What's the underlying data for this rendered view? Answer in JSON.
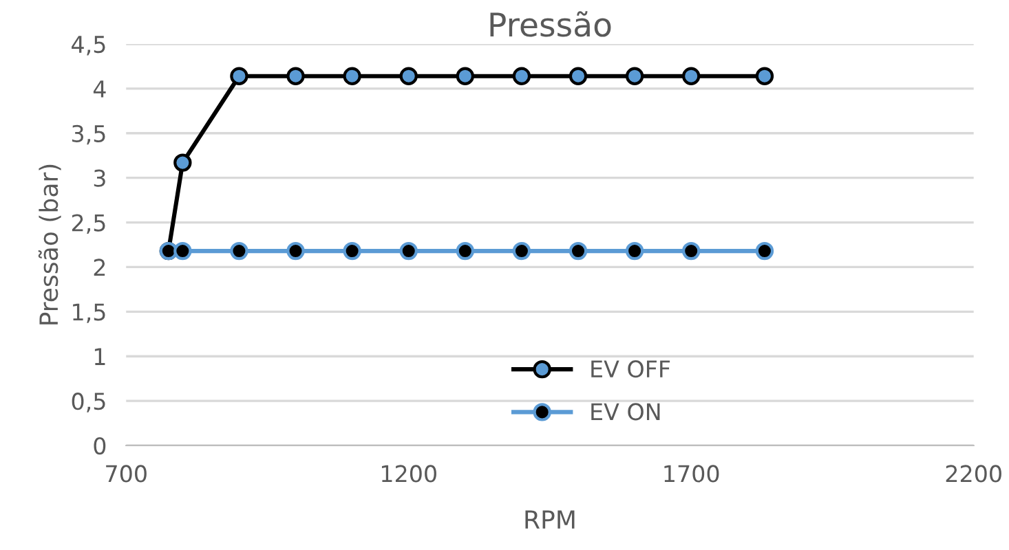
{
  "chart_data": {
    "type": "line",
    "title": "Pressão",
    "xlabel": "RPM",
    "ylabel": "Pressão (bar)",
    "xlim": [
      700,
      2200
    ],
    "xticks": [
      700,
      1200,
      1700,
      2200
    ],
    "ylim": [
      0,
      4.5
    ],
    "yticks": [
      0,
      {
        "value": 0.5,
        "label": "0,5"
      },
      1,
      {
        "value": 1.5,
        "label": "1,5"
      },
      2,
      {
        "value": 2.5,
        "label": "2,5"
      },
      3,
      {
        "value": 3.5,
        "label": "3,5"
      },
      4,
      {
        "value": 4.5,
        "label": "4,5"
      }
    ],
    "grid": "y",
    "legend": "bottom",
    "marker": "circle",
    "line_style": "solid",
    "x": [
      775,
      800,
      900,
      1000,
      1100,
      1200,
      1300,
      1400,
      1500,
      1600,
      1700,
      1830
    ],
    "series": [
      {
        "name": "EV OFF",
        "color": "#000000",
        "values": [
          2.18,
          3.17,
          4.14,
          4.14,
          4.14,
          4.14,
          4.14,
          4.14,
          4.14,
          4.14,
          4.14,
          4.14
        ]
      },
      {
        "name": "EV ON",
        "color": "#5b9bd5",
        "values": [
          2.18,
          2.18,
          2.18,
          2.18,
          2.18,
          2.18,
          2.18,
          2.18,
          2.18,
          2.18,
          2.18,
          2.18
        ]
      }
    ]
  }
}
